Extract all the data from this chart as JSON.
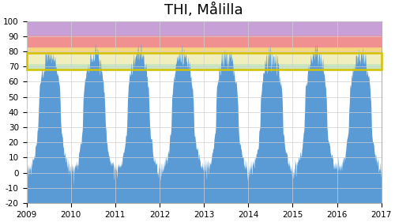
{
  "title": "THI, Målilla",
  "xlim": [
    2009.0,
    2017.0
  ],
  "ylim": [
    -20,
    100
  ],
  "yticks": [
    -20,
    -10,
    0,
    10,
    20,
    30,
    40,
    50,
    60,
    70,
    80,
    90,
    100
  ],
  "xticks": [
    2009,
    2010,
    2011,
    2012,
    2013,
    2014,
    2015,
    2016,
    2017
  ],
  "bands": [
    {
      "ymin": 68,
      "ymax": 72,
      "color": "#c8e6c0",
      "alpha": 1.0
    },
    {
      "ymin": 72,
      "ymax": 79,
      "color": "#f0eebc",
      "alpha": 1.0
    },
    {
      "ymin": 79,
      "ymax": 83,
      "color": "#f5d580",
      "alpha": 1.0
    },
    {
      "ymin": 83,
      "ymax": 91,
      "color": "#f09090",
      "alpha": 1.0
    },
    {
      "ymin": 91,
      "ymax": 100,
      "color": "#c8a0d8",
      "alpha": 1.0
    }
  ],
  "yellow_rect": {
    "ymin": 68,
    "ymax": 79,
    "color": "#d4c200",
    "linewidth": 1.8
  },
  "area_color": "#5b9bd5",
  "area_alpha": 1.0,
  "grid_color": "#d0d0d0",
  "bg_color": "#ffffff",
  "title_fontsize": 13
}
